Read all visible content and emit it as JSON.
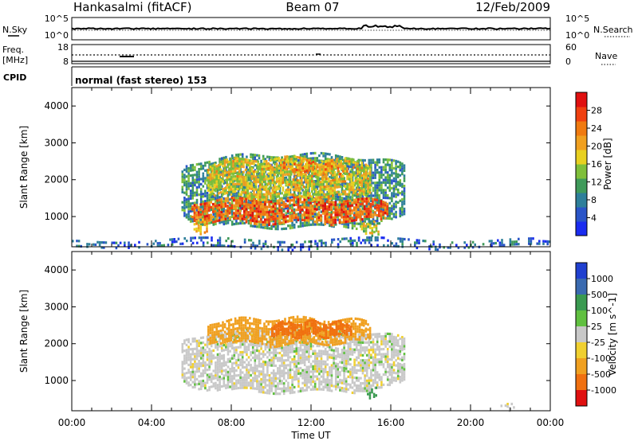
{
  "header": {
    "station": "Hankasalmi (fitACF)",
    "beam": "Beam 07",
    "date": "12/Feb/2009"
  },
  "noise_panel": {
    "left_label": "N.Sky",
    "right_label": "N.Search",
    "left_ticks": [
      "10^5",
      "10^0"
    ],
    "right_ticks": [
      "10^5",
      "10^0"
    ]
  },
  "freq_panel": {
    "left_label_1": "Freq.",
    "left_label_2": "[MHz]",
    "left_ticks": [
      "18",
      "8"
    ],
    "right_label": "Nave",
    "right_ticks": [
      "60",
      "0"
    ]
  },
  "cpid": {
    "label": "CPID",
    "value": "normal (fast stereo) 153"
  },
  "x_axis": {
    "label": "Time UT",
    "ticks": [
      "00:00",
      "04:00",
      "08:00",
      "12:00",
      "16:00",
      "20:00",
      "00:00"
    ]
  },
  "chart_data": [
    {
      "type": "heatmap",
      "title": "",
      "quantity": "Power",
      "xlabel": "Time UT",
      "ylabel": "Slant Range [km]",
      "y_ticks": [
        1000,
        2000,
        3000,
        4000
      ],
      "ylim": [
        180,
        4500
      ],
      "x_range_hours": [
        0,
        24
      ],
      "colorbar": {
        "label": "Power [dB]",
        "ticks": [
          "4",
          "8",
          "12",
          "16",
          "20",
          "24",
          "28"
        ],
        "range": [
          0,
          32
        ],
        "colors": [
          "#1a2cf0",
          "#2a55c8",
          "#2e7f9a",
          "#3f9a5a",
          "#7fbf3a",
          "#e8d020",
          "#f0a020",
          "#f07a10",
          "#f04010",
          "#e01010"
        ]
      },
      "echo_regions": [
        {
          "t_start": 5.5,
          "t_end": 16.7,
          "r_min": 700,
          "r_max": 2700,
          "level_db": 10
        },
        {
          "t_start": 6.0,
          "t_end": 15.8,
          "r_min": 850,
          "r_max": 1500,
          "level_db": 25
        },
        {
          "t_start": 6.8,
          "t_end": 15.0,
          "r_min": 1500,
          "r_max": 2600,
          "level_db": 18
        },
        {
          "t_start": 10.5,
          "t_end": 13.5,
          "r_min": 2200,
          "r_max": 2500,
          "level_db": 22
        },
        {
          "t_start": 14.5,
          "t_end": 15.4,
          "r_min": 550,
          "r_max": 850,
          "level_db": 16
        },
        {
          "t_start": 6.0,
          "t_end": 6.8,
          "r_min": 600,
          "r_max": 900,
          "level_db": 20
        },
        {
          "t_start": 0.0,
          "t_end": 24.0,
          "r_min": 180,
          "r_max": 400,
          "level_db": 6
        }
      ]
    },
    {
      "type": "heatmap",
      "title": "",
      "quantity": "Velocity",
      "xlabel": "Time UT",
      "ylabel": "Slant Range [km]",
      "y_ticks": [
        1000,
        2000,
        3000,
        4000
      ],
      "ylim": [
        180,
        4500
      ],
      "x_range_hours": [
        0,
        24
      ],
      "colorbar": {
        "label": "Velocity [m s^-1]",
        "ticks": [
          "1000",
          "500",
          "100",
          "25",
          "-25",
          "-100",
          "-500",
          "-1000"
        ],
        "colors": [
          "#2040d0",
          "#3a6ab0",
          "#3a9a50",
          "#60c040",
          "#c8c8c8",
          "#f0d030",
          "#f0a020",
          "#f07010",
          "#e01010"
        ]
      },
      "echo_regions": [
        {
          "t_start": 5.5,
          "t_end": 16.7,
          "r_min": 700,
          "r_max": 2400,
          "velocity": 0
        },
        {
          "t_start": 6.8,
          "t_end": 15.0,
          "r_min": 2000,
          "r_max": 2700,
          "velocity": -200
        },
        {
          "t_start": 10.0,
          "t_end": 14.0,
          "r_min": 2200,
          "r_max": 2600,
          "velocity": -300
        },
        {
          "t_start": 14.8,
          "t_end": 15.3,
          "r_min": 550,
          "r_max": 800,
          "velocity": 150
        },
        {
          "t_start": 21.5,
          "t_end": 22.3,
          "r_min": 250,
          "r_max": 400,
          "velocity": 0
        }
      ]
    }
  ]
}
